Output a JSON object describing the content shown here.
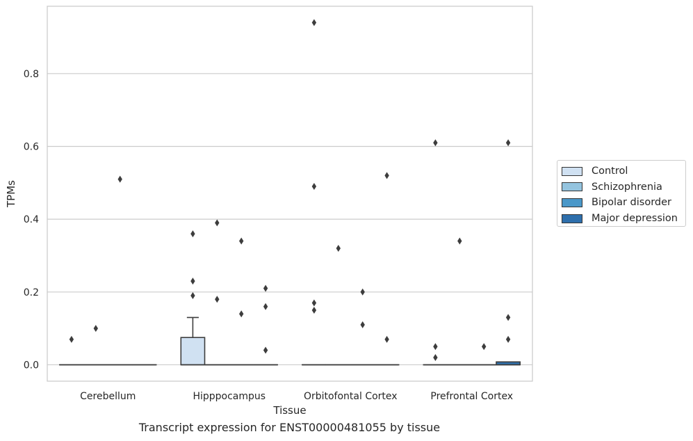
{
  "chart_data": {
    "type": "box",
    "title": "",
    "caption": "Transcript expression for ENST00000481055 by tissue",
    "xlabel": "Tissue",
    "ylabel": "TPMs",
    "ylim": [
      -0.045,
      0.985
    ],
    "yticks": [
      0.0,
      0.2,
      0.4,
      0.6,
      0.8
    ],
    "ytick_labels": [
      "0.0",
      "0.2",
      "0.4",
      "0.6",
      "0.8"
    ],
    "grid": "horizontal",
    "legend_position": "right",
    "categories": [
      "Cerebellum",
      "Hipppocampus",
      "Orbitofontal Cortex",
      "Prefrontal Cortex"
    ],
    "series": [
      {
        "name": "Control",
        "color": "#d0e1f2",
        "boxes": [
          {
            "q1": 0,
            "median": 0,
            "q3": 0,
            "whisker_low": 0,
            "whisker_high": 0,
            "outliers": [
              0.07
            ]
          },
          {
            "q1": 0,
            "median": 0,
            "q3": 0.075,
            "whisker_low": 0,
            "whisker_high": 0.13,
            "outliers": [
              0.19,
              0.23,
              0.36
            ]
          },
          {
            "q1": 0,
            "median": 0,
            "q3": 0,
            "whisker_low": 0,
            "whisker_high": 0,
            "outliers": [
              0.15,
              0.17,
              0.49,
              0.94
            ]
          },
          {
            "q1": 0,
            "median": 0,
            "q3": 0,
            "whisker_low": 0,
            "whisker_high": 0,
            "outliers": [
              0.02,
              0.05,
              0.61
            ]
          }
        ]
      },
      {
        "name": "Schizophrenia",
        "color": "#94c4df",
        "boxes": [
          {
            "q1": 0,
            "median": 0,
            "q3": 0,
            "whisker_low": 0,
            "whisker_high": 0,
            "outliers": [
              0.1
            ]
          },
          {
            "q1": 0,
            "median": 0,
            "q3": 0,
            "whisker_low": 0,
            "whisker_high": 0,
            "outliers": [
              0.18,
              0.39
            ]
          },
          {
            "q1": 0,
            "median": 0,
            "q3": 0,
            "whisker_low": 0,
            "whisker_high": 0,
            "outliers": [
              0.32
            ]
          },
          {
            "q1": 0,
            "median": 0,
            "q3": 0,
            "whisker_low": 0,
            "whisker_high": 0,
            "outliers": [
              0.34
            ]
          }
        ]
      },
      {
        "name": "Bipolar disorder",
        "color": "#4a98c9",
        "boxes": [
          {
            "q1": 0,
            "median": 0,
            "q3": 0,
            "whisker_low": 0,
            "whisker_high": 0,
            "outliers": [
              0.51
            ]
          },
          {
            "q1": 0,
            "median": 0,
            "q3": 0,
            "whisker_low": 0,
            "whisker_high": 0,
            "outliers": [
              0.14,
              0.34
            ]
          },
          {
            "q1": 0,
            "median": 0,
            "q3": 0,
            "whisker_low": 0,
            "whisker_high": 0,
            "outliers": [
              0.11,
              0.2
            ]
          },
          {
            "q1": 0,
            "median": 0,
            "q3": 0,
            "whisker_low": 0,
            "whisker_high": 0,
            "outliers": [
              0.05
            ]
          }
        ]
      },
      {
        "name": "Major depression",
        "color": "#2e6fac",
        "boxes": [
          {
            "q1": 0,
            "median": 0,
            "q3": 0,
            "whisker_low": 0,
            "whisker_high": 0,
            "outliers": []
          },
          {
            "q1": 0,
            "median": 0,
            "q3": 0,
            "whisker_low": 0,
            "whisker_high": 0,
            "outliers": [
              0.04,
              0.16,
              0.21
            ]
          },
          {
            "q1": 0,
            "median": 0,
            "q3": 0,
            "whisker_low": 0,
            "whisker_high": 0,
            "outliers": [
              0.07,
              0.52
            ]
          },
          {
            "q1": 0,
            "median": 0,
            "q3": 0.008,
            "whisker_low": 0,
            "whisker_high": 0.008,
            "outliers": [
              0.07,
              0.13,
              0.61
            ]
          }
        ]
      }
    ]
  }
}
